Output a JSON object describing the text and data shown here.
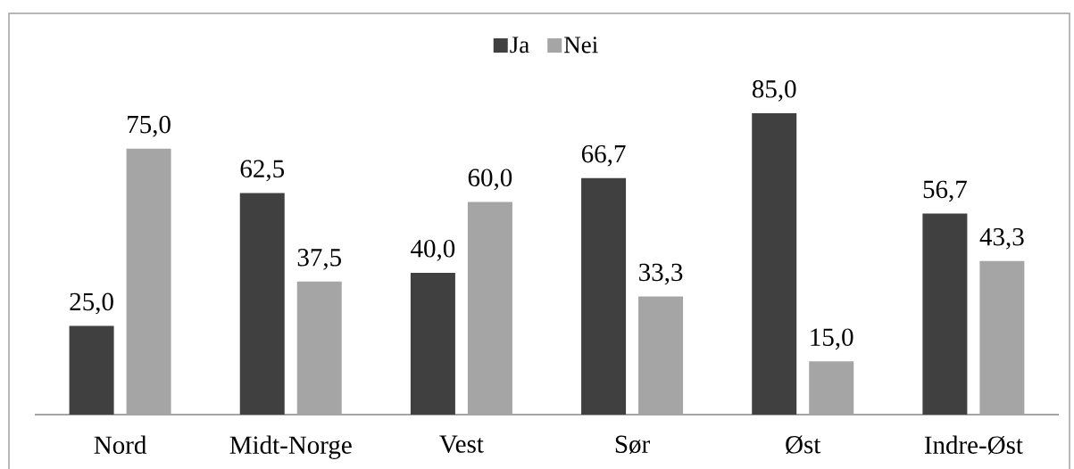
{
  "chart_data": {
    "type": "bar",
    "categories": [
      "Nord",
      "Midt-Norge",
      "Vest",
      "Sør",
      "Øst",
      "Indre-Øst"
    ],
    "series": [
      {
        "name": "Ja",
        "color": "#404040",
        "values": [
          25.0,
          62.5,
          40.0,
          66.7,
          85.0,
          56.7
        ],
        "value_labels": [
          "25,0",
          "62,5",
          "40,0",
          "66,7",
          "85,0",
          "56,7"
        ]
      },
      {
        "name": "Nei",
        "color": "#a5a5a5",
        "values": [
          75.0,
          37.5,
          60.0,
          33.3,
          15.0,
          43.3
        ],
        "value_labels": [
          "75,0",
          "37,5",
          "60,0",
          "33,3",
          "15,0",
          "43,3"
        ]
      }
    ],
    "legend": "top",
    "tick_labels": "x"
  }
}
